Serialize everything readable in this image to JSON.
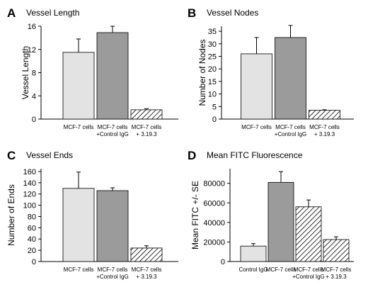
{
  "colors": {
    "light": "#e3e3e3",
    "dark": "#9b9b9b",
    "hatch_line": "#000000",
    "axis": "#000000"
  },
  "chart_data": [
    {
      "panel": "A",
      "type": "bar",
      "title": "Vessel Length",
      "ylabel": "Vessel Length",
      "xlabel": "",
      "ylim": [
        0,
        16
      ],
      "yticks": [
        0,
        4,
        8,
        12,
        16
      ],
      "categories": [
        [
          "MCF-7 cells"
        ],
        [
          "MCF-7 cells",
          "+Control IgG"
        ],
        [
          "MCF-7 cells",
          "+ 3.19.3"
        ]
      ],
      "values": [
        11.5,
        14.9,
        1.6
      ],
      "errors": [
        2.3,
        1.1,
        0.2
      ],
      "fills": [
        "light",
        "dark",
        "hatch"
      ]
    },
    {
      "panel": "B",
      "type": "bar",
      "title": "Vessel Nodes",
      "ylabel": "Number of Nodes",
      "xlabel": "",
      "ylim": [
        0,
        37
      ],
      "yticks": [
        0,
        5,
        10,
        15,
        20,
        25,
        30,
        35
      ],
      "categories": [
        [
          "MCF-7 cells"
        ],
        [
          "MCF-7 cells",
          "+Control IgG"
        ],
        [
          "MCF-7 cells",
          "+ 3.19.3"
        ]
      ],
      "values": [
        26,
        32.5,
        3.5
      ],
      "errors": [
        6.5,
        4.8,
        0.2
      ],
      "fills": [
        "light",
        "dark",
        "hatch"
      ]
    },
    {
      "panel": "C",
      "type": "bar",
      "title": "Vessel Ends",
      "ylabel": "Number of Ends",
      "xlabel": "",
      "ylim": [
        0,
        165
      ],
      "yticks": [
        0,
        20,
        40,
        60,
        80,
        100,
        120,
        140,
        160
      ],
      "categories": [
        [
          "MCF-7 cells"
        ],
        [
          "MCF-7 cells",
          "+Control IgG"
        ],
        [
          "MCF-7 cells",
          "+ 3.19.3"
        ]
      ],
      "values": [
        130,
        126,
        24
      ],
      "errors": [
        29,
        5,
        4
      ],
      "fills": [
        "light",
        "dark",
        "hatch"
      ]
    },
    {
      "panel": "D",
      "type": "bar",
      "title": "Mean FITC Fluorescence",
      "ylabel": "Mean FITC +/- SE",
      "xlabel": "",
      "ylim": [
        0,
        95000
      ],
      "yticks": [
        0,
        20000,
        40000,
        60000,
        80000
      ],
      "categories": [
        [
          "Control IgG"
        ],
        [
          "MCF-7 cells"
        ],
        [
          "MCF-7 cells",
          "+Control IgG"
        ],
        [
          "MCF-7 cells",
          "+ 3.19.3"
        ]
      ],
      "values": [
        15800,
        81000,
        56000,
        22500
      ],
      "errors": [
        2500,
        11000,
        7000,
        2800
      ],
      "fills": [
        "light",
        "dark",
        "hatch",
        "hatch"
      ]
    }
  ]
}
